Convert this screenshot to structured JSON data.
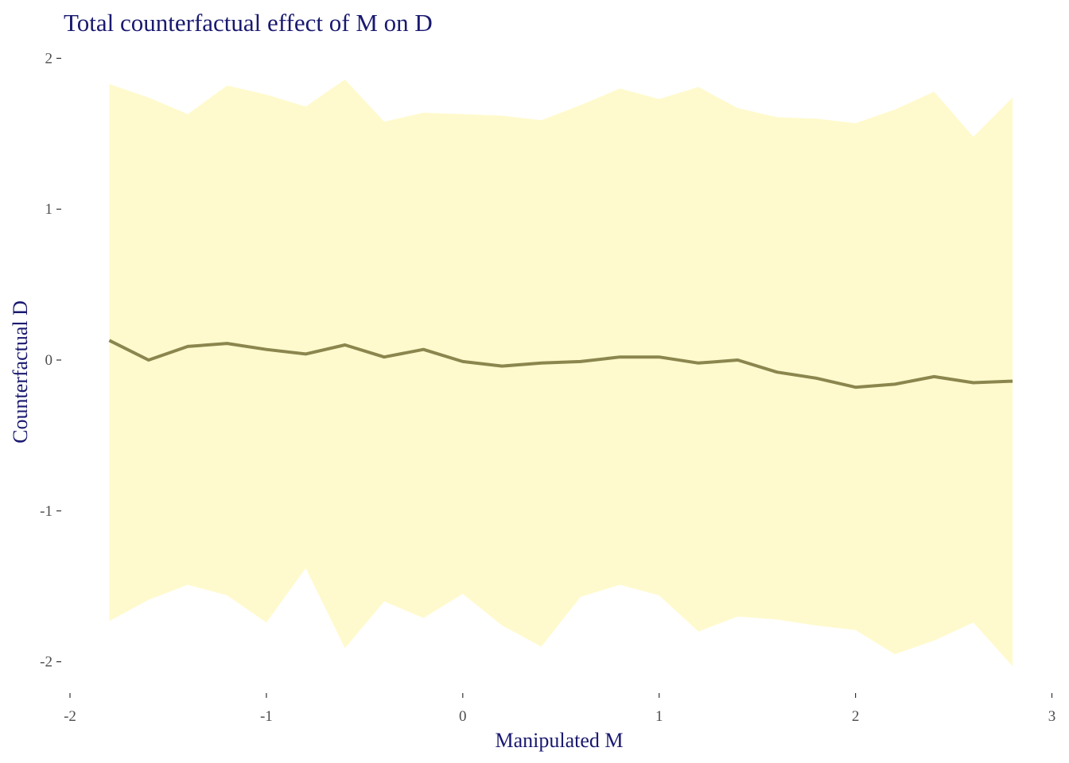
{
  "chart_data": {
    "type": "line",
    "title": "Total counterfactual effect of M on D",
    "xlabel": "Manipulated M",
    "ylabel": "Counterfactual D",
    "xlim": [
      -2,
      3
    ],
    "ylim": [
      -2.2,
      2.05
    ],
    "x_ticks": [
      -2,
      -1,
      0,
      1,
      2,
      3
    ],
    "y_ticks": [
      -2,
      -1,
      0,
      1,
      2
    ],
    "x_tick_labels": [
      "-2",
      "-1",
      "0",
      "1",
      "2",
      "3"
    ],
    "y_tick_labels": [
      "-2",
      "-1",
      "0",
      "1",
      "2"
    ],
    "grid": false,
    "colors": {
      "ribbon": "#FFFACD",
      "line": "#8B864E",
      "title": "#191970",
      "tick_text": "#4D4D4D"
    },
    "series": [
      {
        "x": [
          -1.8,
          -1.6,
          -1.4,
          -1.2,
          -1.0,
          -0.8,
          -0.6,
          -0.4,
          -0.2,
          0.0,
          0.2,
          0.4,
          0.6,
          0.8,
          1.0,
          1.2,
          1.4,
          1.6,
          1.8,
          2.0,
          2.2,
          2.4,
          2.6,
          2.8
        ],
        "mean": [
          0.13,
          0.0,
          0.09,
          0.11,
          0.07,
          0.04,
          0.1,
          0.02,
          0.07,
          -0.01,
          -0.04,
          -0.02,
          -0.01,
          0.02,
          0.02,
          -0.02,
          0.0,
          -0.08,
          -0.12,
          -0.18,
          -0.16,
          -0.11,
          -0.15,
          -0.14
        ],
        "upper": [
          1.83,
          1.74,
          1.63,
          1.82,
          1.76,
          1.68,
          1.86,
          1.58,
          1.64,
          1.63,
          1.62,
          1.59,
          1.69,
          1.8,
          1.73,
          1.81,
          1.67,
          1.61,
          1.6,
          1.57,
          1.66,
          1.78,
          1.48,
          1.74
        ],
        "lower": [
          -1.73,
          -1.59,
          -1.49,
          -1.56,
          -1.74,
          -1.38,
          -1.91,
          -1.6,
          -1.71,
          -1.55,
          -1.76,
          -1.9,
          -1.57,
          -1.49,
          -1.56,
          -1.8,
          -1.7,
          -1.72,
          -1.76,
          -1.79,
          -1.95,
          -1.86,
          -1.74,
          -2.03
        ]
      }
    ]
  }
}
